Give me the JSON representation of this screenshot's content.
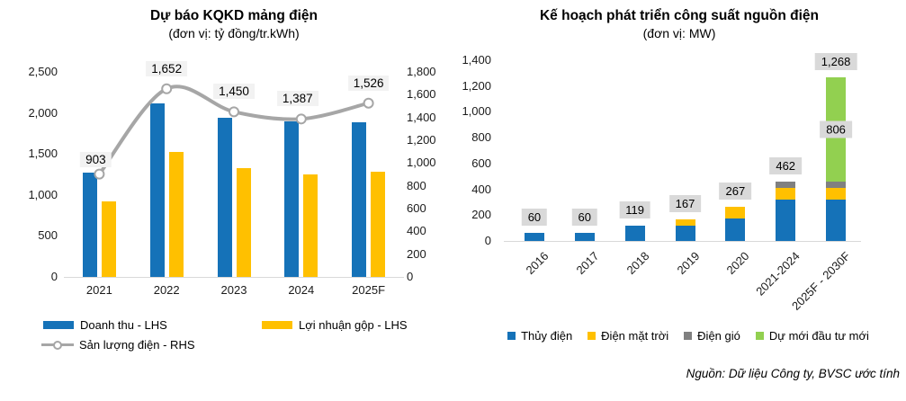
{
  "source_note": "Nguồn: Dữ liệu Công ty, BVSC ước tính",
  "chart_data": [
    {
      "type": "bar",
      "subtype": "grouped-bars-with-line",
      "title": "Dự báo KQKD mảng điện",
      "subtitle": "(đơn vị: tỷ đồng/tr.kWh)",
      "categories": [
        "2021",
        "2022",
        "2023",
        "2024",
        "2025F"
      ],
      "series": [
        {
          "name": "Doanh thu - LHS",
          "type": "bar",
          "axis": "left",
          "color": "#1572B8",
          "values": [
            1270,
            2115,
            1940,
            1895,
            1890
          ]
        },
        {
          "name": "Lợi nhuận gộp - LHS",
          "type": "bar",
          "axis": "left",
          "color": "#FFC000",
          "values": [
            920,
            1520,
            1330,
            1255,
            1280
          ]
        },
        {
          "name": "Sản lượng điện - RHS",
          "type": "line",
          "axis": "right",
          "color": "#A6A6A6",
          "values": [
            903,
            1652,
            1450,
            1387,
            1526
          ],
          "labels": [
            "903",
            "1,652",
            "1,450",
            "1,387",
            "1,526"
          ],
          "label_offsets": [
            {
              "dx": -4,
              "dy": -6
            },
            {
              "dx": 0,
              "dy": -12
            },
            {
              "dx": 0,
              "dy": -12
            },
            {
              "dx": -4,
              "dy": -12
            },
            {
              "dx": 0,
              "dy": -12
            }
          ]
        }
      ],
      "left_axis": {
        "min": 0,
        "max": 2500,
        "ticks": [
          "0",
          "500",
          "1,000",
          "1,500",
          "2,000",
          "2,500"
        ]
      },
      "right_axis": {
        "min": 0,
        "max": 1800,
        "ticks": [
          "0",
          "200",
          "400",
          "600",
          "800",
          "1,000",
          "1,200",
          "1,400",
          "1,600",
          "1,800"
        ]
      },
      "grid": false,
      "legend_position": "bottom",
      "label_bg": "#F2F2F2",
      "marker": {
        "fill": "#FFFFFF",
        "stroke": "#A6A6A6"
      }
    },
    {
      "type": "bar",
      "subtype": "stacked",
      "title": "Kế hoạch phát triển công suất nguồn điện",
      "subtitle": "(đơn vị: MW)",
      "categories": [
        "2016",
        "2017",
        "2018",
        "2019",
        "2020",
        "2021-2024",
        "2025F - 2030F"
      ],
      "series": [
        {
          "name": "Thủy điện",
          "color": "#1572B8",
          "values": [
            60,
            60,
            119,
            120,
            175,
            318,
            318
          ]
        },
        {
          "name": "Điện mặt trời",
          "color": "#FFC000",
          "values": [
            0,
            0,
            0,
            47,
            92,
            95,
            95
          ]
        },
        {
          "name": "Điện gió",
          "color": "#808080",
          "values": [
            0,
            0,
            0,
            0,
            0,
            49,
            49
          ]
        },
        {
          "name": "Dự mới đầu tư mới",
          "color": "#92D050",
          "values": [
            0,
            0,
            0,
            0,
            0,
            0,
            806
          ]
        }
      ],
      "totals": [
        "60",
        "60",
        "119",
        "167",
        "267",
        "462",
        "1,268"
      ],
      "segment_labels": [
        {
          "category_index": 6,
          "series_index": 3,
          "text": "806"
        }
      ],
      "y_axis": {
        "min": 0,
        "max": 1400,
        "ticks": [
          "0",
          "200",
          "400",
          "600",
          "800",
          "1,000",
          "1,200",
          "1,400"
        ]
      },
      "grid": false,
      "legend_position": "bottom",
      "label_bg": "#D9D9D9"
    }
  ]
}
